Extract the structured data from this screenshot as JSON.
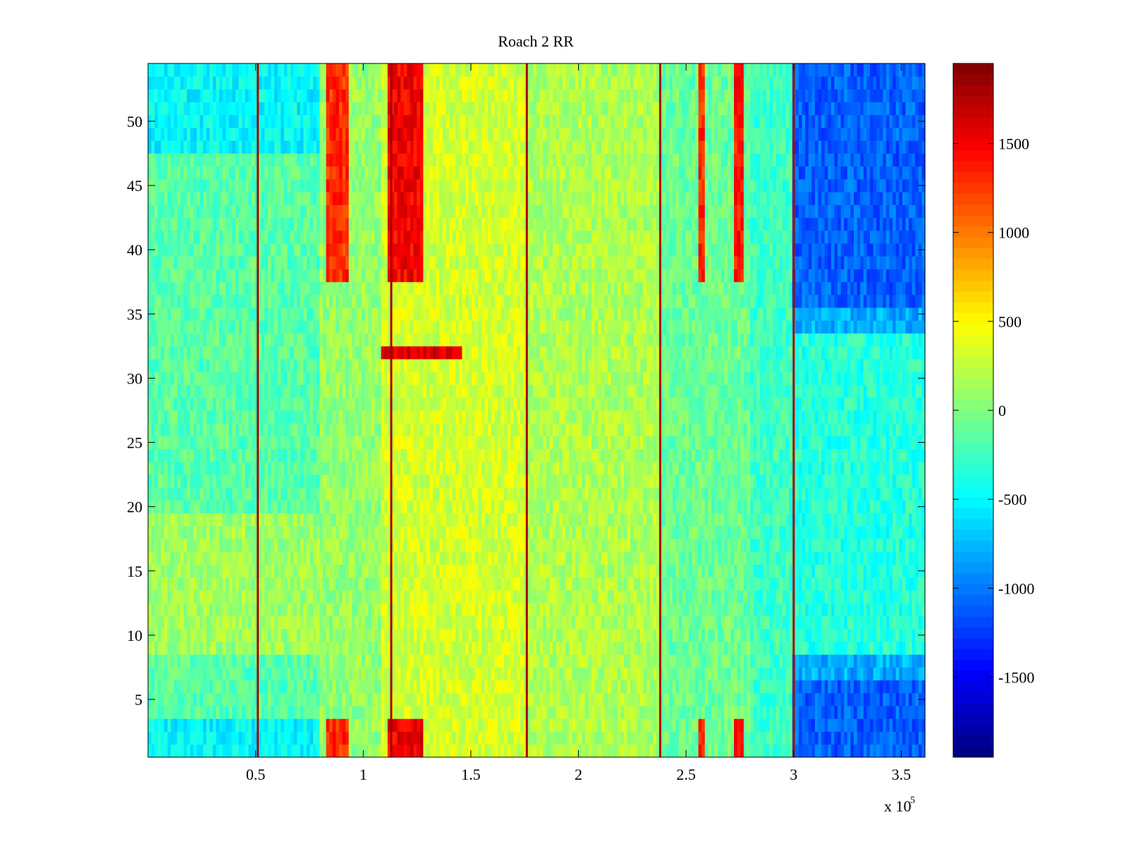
{
  "chart_data": {
    "type": "heatmap",
    "title": "Roach 2 RR",
    "xlabel": "",
    "ylabel": "",
    "x_multiplier_label": "x 10",
    "x_multiplier_exponent": "5",
    "xlim": [
      0,
      361000
    ],
    "ylim": [
      0.5,
      54.5
    ],
    "x_ticks": [
      50000,
      100000,
      150000,
      200000,
      250000,
      300000,
      350000
    ],
    "x_tick_labels": [
      "0.5",
      "1",
      "1.5",
      "2",
      "2.5",
      "3",
      "3.5"
    ],
    "y_ticks": [
      5,
      10,
      15,
      20,
      25,
      30,
      35,
      40,
      45,
      50
    ],
    "y_tick_labels": [
      "5",
      "10",
      "15",
      "20",
      "25",
      "30",
      "35",
      "40",
      "45",
      "50"
    ],
    "rows": 54,
    "colormap": "jet",
    "colorbar": {
      "clim": [
        -1950,
        1950
      ],
      "ticks": [
        1500,
        1000,
        500,
        0,
        -500,
        -1000,
        -1500
      ],
      "tick_labels": [
        "1500",
        "1000",
        "500",
        "0",
        "-500",
        "-1000",
        "-1500"
      ]
    },
    "vertical_high_lines_x": [
      51000,
      113000,
      176000,
      238000,
      300000
    ],
    "red_bands": [
      {
        "x_range": [
          82000,
          94000
        ],
        "rows": [
          [
            1,
            3
          ],
          [
            38,
            54
          ]
        ],
        "value": 1300
      },
      {
        "x_range": [
          112000,
          128000
        ],
        "rows": [
          [
            1,
            3
          ],
          [
            38,
            54
          ]
        ],
        "value": 1500
      },
      {
        "x_range": [
          255000,
          258000
        ],
        "rows": [
          [
            1,
            3
          ],
          [
            38,
            54
          ]
        ],
        "value": 1300
      },
      {
        "x_range": [
          272000,
          277000
        ],
        "rows": [
          [
            1,
            3
          ],
          [
            38,
            54
          ]
        ],
        "value": 1400
      },
      {
        "x_range": [
          109000,
          146000
        ],
        "rows": [
          [
            32,
            32
          ]
        ],
        "value": 1600
      }
    ],
    "blue_region": {
      "x_range": [
        300000,
        361000
      ],
      "value": -1100
    },
    "grid": false
  }
}
